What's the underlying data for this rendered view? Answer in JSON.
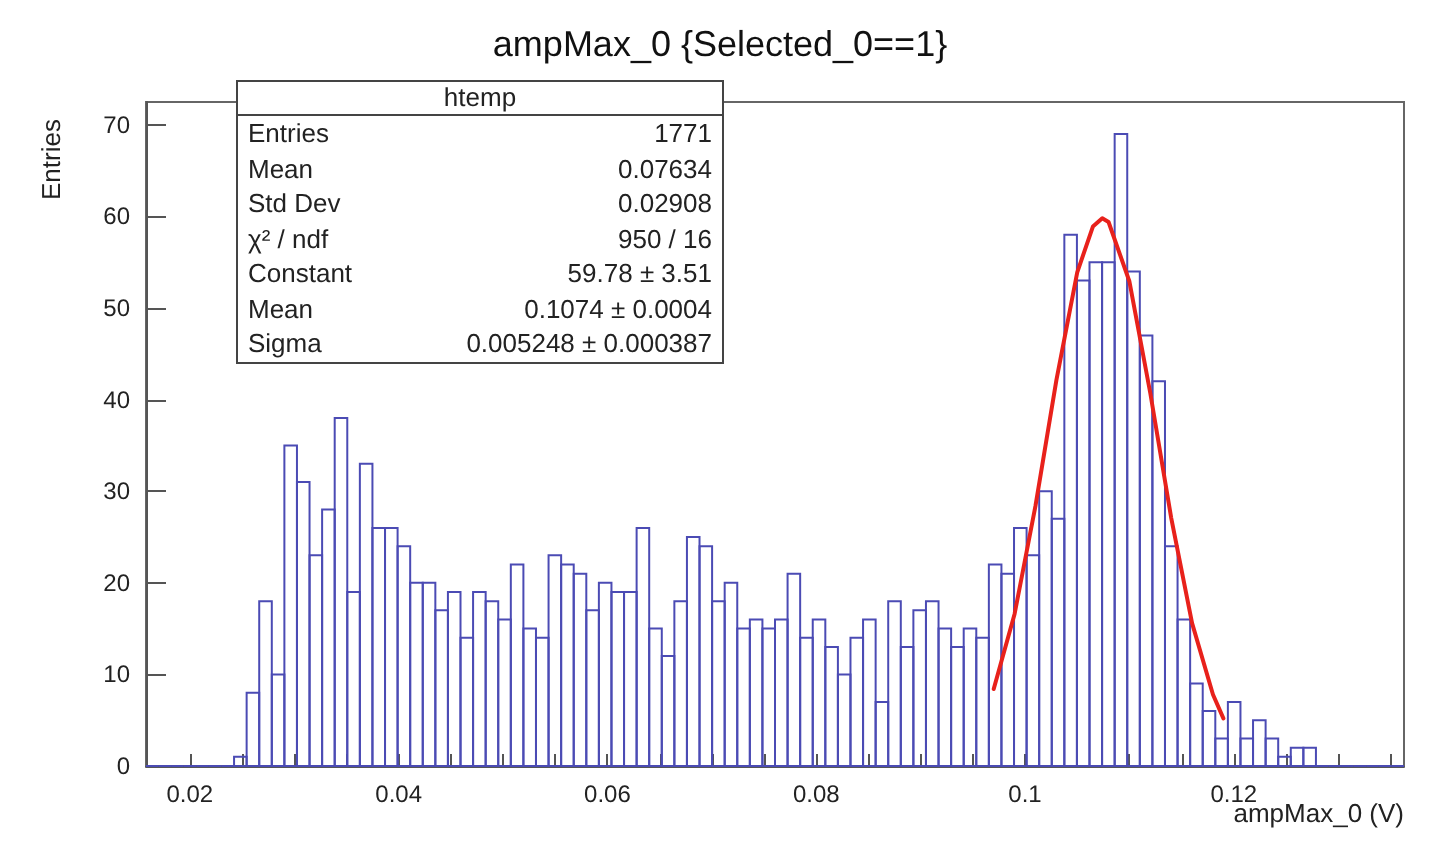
{
  "chart_data": {
    "type": "histogram",
    "title": "ampMax_0 {Selected_0==1}",
    "xlabel": "ampMax_0  (V)",
    "ylabel": "Entries",
    "annotations": [
      "htemp",
      "Entries\t1771",
      "Mean\t0.07634",
      "Std Dev\t0.02908",
      "χ² / ndf\t950 / 16",
      "Constant\t59.78 ± 3.51",
      "Mean\t0.1074 ± 0.0004",
      "Sigma\t0.005248 ± 0.000387"
    ],
    "bins": [
      0.0158,
      0.017005,
      0.01821,
      0.019415,
      0.02062,
      0.021825,
      0.02303,
      0.024235,
      0.02544,
      0.026645,
      0.02785,
      0.029055,
      0.03026,
      0.031465,
      0.03267,
      0.033875,
      0.03508,
      0.036285,
      0.03749,
      0.038695,
      0.0399,
      0.041105,
      0.04231,
      0.043515,
      0.04472,
      0.045925,
      0.04713,
      0.048335,
      0.04954,
      0.050745,
      0.05195,
      0.053155,
      0.05436,
      0.055565,
      0.05677,
      0.057975,
      0.05918,
      0.060385,
      0.06159,
      0.062795,
      0.064,
      0.065205,
      0.06641,
      0.067615,
      0.06882,
      0.070025,
      0.07123,
      0.072435,
      0.07364,
      0.074845,
      0.07605,
      0.077255,
      0.07846,
      0.079665,
      0.08087,
      0.082075,
      0.08328,
      0.084485,
      0.08569,
      0.086895,
      0.0881,
      0.089305,
      0.09051,
      0.091715,
      0.09292,
      0.094125,
      0.09533,
      0.096535,
      0.09774,
      0.098945,
      0.10015,
      0.101355,
      0.10256,
      0.103765,
      0.10497,
      0.106175,
      0.10738,
      0.108585,
      0.10979,
      0.110995,
      0.1122,
      0.113405,
      0.11461,
      0.115815,
      0.11702,
      0.118225,
      0.11943,
      0.120635,
      0.12184,
      0.123045,
      0.12425,
      0.125455,
      0.12666,
      0.127865,
      0.12907,
      0.130275,
      0.13148,
      0.132685,
      0.13389,
      0.135095,
      0.1363
    ],
    "series": [
      {
        "color": "#4b4bb4",
        "values": [
          0,
          0,
          0,
          0,
          0,
          0,
          0,
          1,
          8,
          18,
          10,
          35,
          31,
          23,
          28,
          38,
          19,
          33,
          26,
          26,
          24,
          20,
          20,
          17,
          19,
          14,
          19,
          18,
          16,
          22,
          15,
          14,
          23,
          22,
          21,
          17,
          20,
          19,
          19,
          26,
          15,
          12,
          18,
          25,
          24,
          18,
          20,
          15,
          16,
          15,
          16,
          21,
          14,
          16,
          13,
          10,
          14,
          16,
          7,
          18,
          13,
          17,
          18,
          15,
          13,
          15,
          14,
          22,
          21,
          26,
          23,
          30,
          27,
          58,
          53,
          55,
          55,
          69,
          54,
          47,
          42,
          24,
          16,
          9,
          6,
          3,
          7,
          3,
          5,
          3,
          1,
          2,
          2,
          0,
          0,
          0,
          0,
          0,
          0,
          0
        ]
      },
      {
        "type": "line",
        "color": "#e8211b",
        "x": [
          0.097,
          0.099,
          0.101,
          0.103,
          0.105,
          0.1065,
          0.1074,
          0.108,
          0.11,
          0.112,
          0.114,
          0.116,
          0.118,
          0.119
        ],
        "values": [
          8.4,
          16.6,
          28.4,
          42.1,
          53.9,
          58.9,
          59.8,
          59.4,
          52.9,
          40.7,
          27.1,
          15.6,
          7.8,
          5.2
        ]
      }
    ],
    "xlim": [
      0.0158,
      0.1363
    ],
    "xticks": [
      0.02,
      {
        "value": 0.025,
        "label": null
      },
      {
        "value": 0.03,
        "label": null
      },
      {
        "value": 0.035,
        "label": null
      },
      0.04,
      {
        "value": 0.045,
        "label": null
      },
      {
        "value": 0.05,
        "label": null
      },
      {
        "value": 0.055,
        "label": null
      },
      0.06,
      {
        "value": 0.065,
        "label": null
      },
      {
        "value": 0.07,
        "label": null
      },
      {
        "value": 0.075,
        "label": null
      },
      0.08,
      {
        "value": 0.085,
        "label": null
      },
      {
        "value": 0.09,
        "label": null
      },
      {
        "value": 0.095,
        "label": null
      },
      0.1,
      {
        "value": 0.105,
        "label": null
      },
      {
        "value": 0.11,
        "label": null
      },
      {
        "value": 0.115,
        "label": null
      },
      0.12,
      {
        "value": 0.125,
        "label": null
      },
      {
        "value": 0.13,
        "label": null
      },
      {
        "value": 0.135,
        "label": null
      }
    ],
    "ylim": [
      0,
      72.5
    ],
    "yticks": [
      0,
      10,
      20,
      30,
      40,
      50,
      60,
      70
    ],
    "grid": false
  }
}
